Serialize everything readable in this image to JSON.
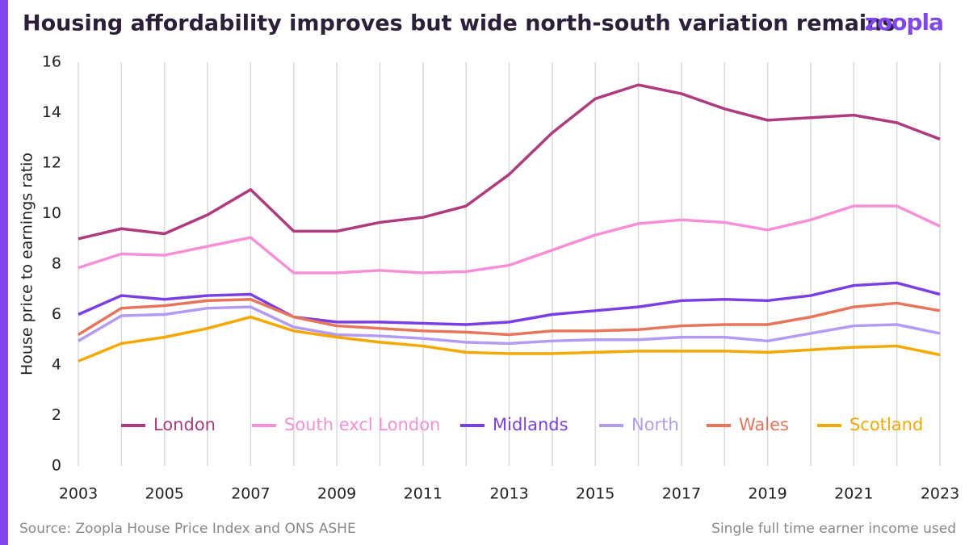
{
  "brand": "zoopla",
  "chart_data": {
    "type": "line",
    "title": "Housing affordability improves but wide north-south variation remains",
    "y_label": "House price to earnings ratio",
    "source": "Source: Zoopla House Price Index and ONS ASHE",
    "note": "Single full time earner income used",
    "x": [
      2003,
      2004,
      2005,
      2006,
      2007,
      2008,
      2009,
      2010,
      2011,
      2012,
      2013,
      2014,
      2015,
      2016,
      2017,
      2018,
      2019,
      2020,
      2021,
      2022,
      2023
    ],
    "xlim": [
      2003,
      2023
    ],
    "xticks": [
      2003,
      2005,
      2007,
      2009,
      2011,
      2013,
      2015,
      2017,
      2019,
      2021,
      2023
    ],
    "ylim": [
      0,
      16
    ],
    "yticks": [
      0,
      2,
      4,
      6,
      8,
      10,
      12,
      14,
      16
    ],
    "grid": "x",
    "series": [
      {
        "name": "London",
        "color": "#b03a7e",
        "values": [
          9.0,
          9.4,
          9.2,
          9.95,
          10.95,
          9.3,
          9.3,
          9.65,
          9.85,
          10.3,
          11.55,
          13.2,
          14.55,
          15.1,
          14.75,
          14.15,
          13.7,
          13.8,
          13.9,
          13.6,
          12.95
        ]
      },
      {
        "name": "South excl London",
        "color": "#f78fd8",
        "values": [
          7.85,
          8.4,
          8.35,
          8.7,
          9.05,
          7.65,
          7.65,
          7.75,
          7.65,
          7.7,
          7.95,
          8.55,
          9.15,
          9.6,
          9.75,
          9.65,
          9.35,
          9.75,
          10.3,
          10.3,
          9.5
        ]
      },
      {
        "name": "Midlands",
        "color": "#7a3ee8",
        "values": [
          6.0,
          6.75,
          6.6,
          6.75,
          6.8,
          5.9,
          5.7,
          5.7,
          5.65,
          5.6,
          5.7,
          6.0,
          6.15,
          6.3,
          6.55,
          6.6,
          6.55,
          6.75,
          7.15,
          7.25,
          6.8
        ]
      },
      {
        "name": "North",
        "color": "#b39af2",
        "values": [
          4.95,
          5.95,
          6.0,
          6.25,
          6.3,
          5.5,
          5.2,
          5.15,
          5.05,
          4.9,
          4.85,
          4.95,
          5.0,
          5.0,
          5.1,
          5.1,
          4.95,
          5.25,
          5.55,
          5.6,
          5.25
        ]
      },
      {
        "name": "Wales",
        "color": "#e8745a",
        "values": [
          5.2,
          6.25,
          6.35,
          6.55,
          6.6,
          5.9,
          5.55,
          5.45,
          5.35,
          5.3,
          5.2,
          5.35,
          5.35,
          5.4,
          5.55,
          5.6,
          5.6,
          5.9,
          6.3,
          6.45,
          6.15
        ]
      },
      {
        "name": "Scotland",
        "color": "#f5a800",
        "values": [
          4.15,
          4.85,
          5.1,
          5.45,
          5.9,
          5.35,
          5.1,
          4.9,
          4.75,
          4.5,
          4.45,
          4.45,
          4.5,
          4.55,
          4.55,
          4.55,
          4.5,
          4.6,
          4.7,
          4.75,
          4.4
        ]
      }
    ]
  }
}
